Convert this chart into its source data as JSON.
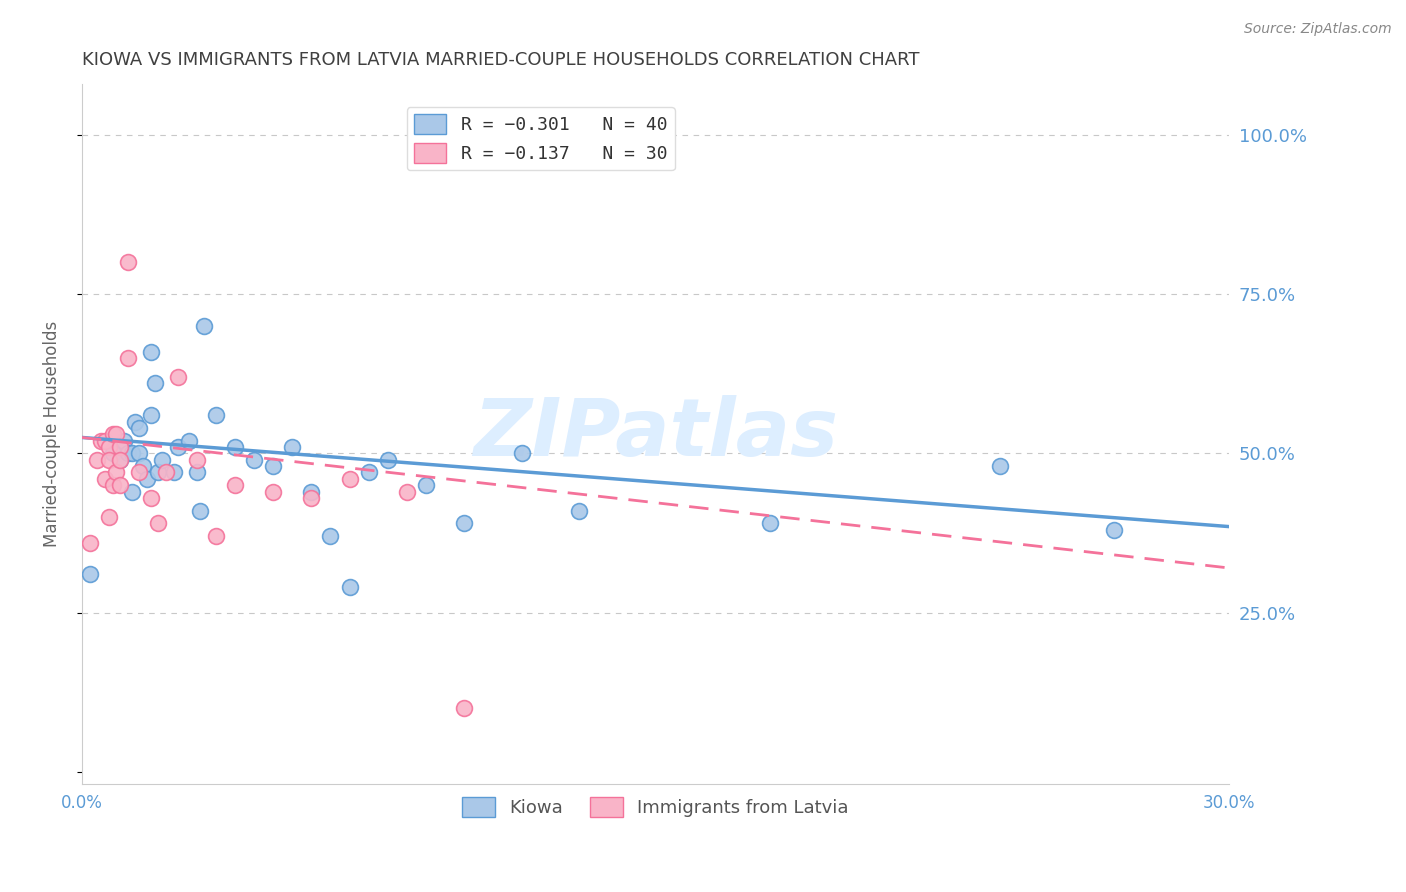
{
  "title": "KIOWA VS IMMIGRANTS FROM LATVIA MARRIED-COUPLE HOUSEHOLDS CORRELATION CHART",
  "source": "Source: ZipAtlas.com",
  "ylabel": "Married-couple Households",
  "xlim": [
    0.0,
    0.3
  ],
  "ylim": [
    -0.02,
    1.08
  ],
  "yticks": [
    0.0,
    0.25,
    0.5,
    0.75,
    1.0
  ],
  "ytick_labels": [
    "",
    "25.0%",
    "50.0%",
    "75.0%",
    "100.0%"
  ],
  "xticks": [
    0.0,
    0.05,
    0.1,
    0.15,
    0.2,
    0.25,
    0.3
  ],
  "xtick_labels": [
    "0.0%",
    "",
    "",
    "",
    "",
    "",
    "30.0%"
  ],
  "legend_entries": [
    {
      "label": "R = −0.301   N = 40",
      "color_face": "#aac8e8",
      "color_edge": "#5b9bd5"
    },
    {
      "label": "R = −0.137   N = 30",
      "color_face": "#f9b4c8",
      "color_edge": "#f4729a"
    }
  ],
  "kiowa_scatter_x": [
    0.002,
    0.008,
    0.01,
    0.011,
    0.012,
    0.013,
    0.013,
    0.014,
    0.015,
    0.015,
    0.016,
    0.017,
    0.018,
    0.018,
    0.019,
    0.02,
    0.021,
    0.024,
    0.025,
    0.028,
    0.03,
    0.031,
    0.032,
    0.035,
    0.04,
    0.045,
    0.05,
    0.055,
    0.06,
    0.065,
    0.07,
    0.075,
    0.08,
    0.09,
    0.1,
    0.115,
    0.13,
    0.18,
    0.24,
    0.27
  ],
  "kiowa_scatter_y": [
    0.31,
    0.5,
    0.49,
    0.52,
    0.5,
    0.5,
    0.44,
    0.55,
    0.54,
    0.5,
    0.48,
    0.46,
    0.66,
    0.56,
    0.61,
    0.47,
    0.49,
    0.47,
    0.51,
    0.52,
    0.47,
    0.41,
    0.7,
    0.56,
    0.51,
    0.49,
    0.48,
    0.51,
    0.44,
    0.37,
    0.29,
    0.47,
    0.49,
    0.45,
    0.39,
    0.5,
    0.41,
    0.39,
    0.48,
    0.38
  ],
  "latvia_scatter_x": [
    0.002,
    0.004,
    0.005,
    0.006,
    0.006,
    0.007,
    0.007,
    0.007,
    0.008,
    0.008,
    0.009,
    0.009,
    0.01,
    0.01,
    0.01,
    0.012,
    0.012,
    0.015,
    0.018,
    0.02,
    0.022,
    0.025,
    0.03,
    0.035,
    0.04,
    0.05,
    0.06,
    0.07,
    0.085,
    0.1
  ],
  "latvia_scatter_y": [
    0.36,
    0.49,
    0.52,
    0.52,
    0.46,
    0.51,
    0.49,
    0.4,
    0.53,
    0.45,
    0.53,
    0.47,
    0.51,
    0.45,
    0.49,
    0.8,
    0.65,
    0.47,
    0.43,
    0.39,
    0.47,
    0.62,
    0.49,
    0.37,
    0.45,
    0.44,
    0.43,
    0.46,
    0.44,
    0.1
  ],
  "kiowa_line_x": [
    0.0,
    0.3
  ],
  "kiowa_line_y": [
    0.525,
    0.385
  ],
  "latvia_line_x": [
    0.0,
    0.3
  ],
  "latvia_line_y": [
    0.525,
    0.32
  ],
  "kiowa_color": "#5b9bd5",
  "latvia_color": "#f4729a",
  "kiowa_scatter_color": "#aac8e8",
  "latvia_scatter_color": "#f9b4c8",
  "background_color": "#ffffff",
  "grid_color": "#c8c8c8",
  "title_color": "#404040",
  "right_axis_color": "#5b9bd5",
  "source_color": "#888888",
  "ylabel_color": "#666666",
  "watermark": "ZIPatlas",
  "watermark_color": "#ddeeff"
}
